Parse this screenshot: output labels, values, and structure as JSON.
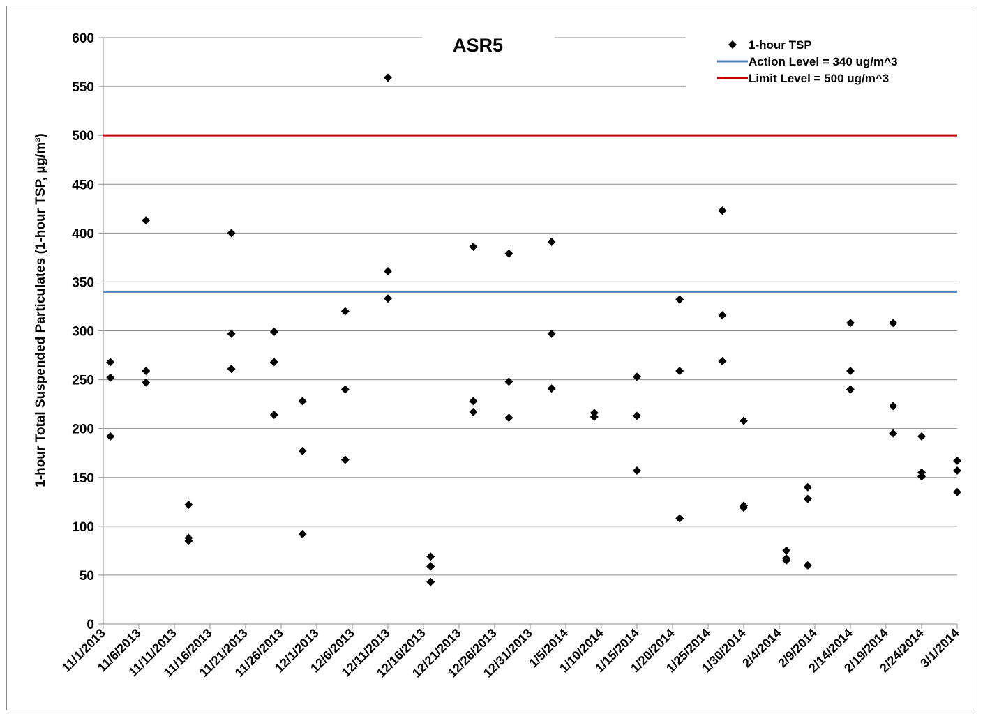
{
  "chart_data": {
    "type": "scatter",
    "title": "ASR5",
    "ylabel": "1-hour Total Suspended Particulates (1-hour TSP, µg/m³)",
    "xlabel": "",
    "ylim": [
      0,
      600
    ],
    "yticks": [
      0,
      50,
      100,
      150,
      200,
      250,
      300,
      350,
      400,
      450,
      500,
      550,
      600
    ],
    "xlim": [
      "11/1/2013",
      "3/1/2014"
    ],
    "xticks": [
      "11/1/2013",
      "11/6/2013",
      "11/11/2013",
      "11/16/2013",
      "11/21/2013",
      "11/26/2013",
      "12/1/2013",
      "12/6/2013",
      "12/11/2013",
      "12/16/2013",
      "12/21/2013",
      "12/26/2013",
      "12/31/2013",
      "1/5/2014",
      "1/10/2014",
      "1/15/2014",
      "1/20/2014",
      "1/25/2014",
      "1/30/2014",
      "2/4/2014",
      "2/9/2014",
      "2/14/2014",
      "2/19/2014",
      "2/24/2014",
      "3/1/2014"
    ],
    "grid": "horizontal",
    "legend_position": "top-right",
    "series": [
      {
        "name": "1-hour TSP",
        "kind": "scatter",
        "color": "#000000",
        "marker": "diamond",
        "points": [
          {
            "x": "11/2/2013",
            "y": 268
          },
          {
            "x": "11/2/2013",
            "y": 252
          },
          {
            "x": "11/2/2013",
            "y": 192
          },
          {
            "x": "11/7/2013",
            "y": 413
          },
          {
            "x": "11/7/2013",
            "y": 259
          },
          {
            "x": "11/7/2013",
            "y": 247
          },
          {
            "x": "11/13/2013",
            "y": 122
          },
          {
            "x": "11/13/2013",
            "y": 88
          },
          {
            "x": "11/13/2013",
            "y": 85
          },
          {
            "x": "11/19/2013",
            "y": 400
          },
          {
            "x": "11/19/2013",
            "y": 297
          },
          {
            "x": "11/19/2013",
            "y": 261
          },
          {
            "x": "11/25/2013",
            "y": 299
          },
          {
            "x": "11/25/2013",
            "y": 268
          },
          {
            "x": "11/25/2013",
            "y": 214
          },
          {
            "x": "11/29/2013",
            "y": 228
          },
          {
            "x": "11/29/2013",
            "y": 177
          },
          {
            "x": "11/29/2013",
            "y": 92
          },
          {
            "x": "12/5/2013",
            "y": 320
          },
          {
            "x": "12/5/2013",
            "y": 240
          },
          {
            "x": "12/5/2013",
            "y": 168
          },
          {
            "x": "12/11/2013",
            "y": 559
          },
          {
            "x": "12/11/2013",
            "y": 361
          },
          {
            "x": "12/11/2013",
            "y": 333
          },
          {
            "x": "12/17/2013",
            "y": 69
          },
          {
            "x": "12/17/2013",
            "y": 59
          },
          {
            "x": "12/17/2013",
            "y": 43
          },
          {
            "x": "12/23/2013",
            "y": 386
          },
          {
            "x": "12/23/2013",
            "y": 228
          },
          {
            "x": "12/23/2013",
            "y": 217
          },
          {
            "x": "12/28/2013",
            "y": 379
          },
          {
            "x": "12/28/2013",
            "y": 248
          },
          {
            "x": "12/28/2013",
            "y": 211
          },
          {
            "x": "1/3/2014",
            "y": 391
          },
          {
            "x": "1/3/2014",
            "y": 297
          },
          {
            "x": "1/3/2014",
            "y": 241
          },
          {
            "x": "1/9/2014",
            "y": 216
          },
          {
            "x": "1/9/2014",
            "y": 212
          },
          {
            "x": "1/15/2014",
            "y": 253
          },
          {
            "x": "1/15/2014",
            "y": 213
          },
          {
            "x": "1/15/2014",
            "y": 157
          },
          {
            "x": "1/21/2014",
            "y": 332
          },
          {
            "x": "1/21/2014",
            "y": 259
          },
          {
            "x": "1/21/2014",
            "y": 108
          },
          {
            "x": "1/27/2014",
            "y": 423
          },
          {
            "x": "1/27/2014",
            "y": 316
          },
          {
            "x": "1/27/2014",
            "y": 269
          },
          {
            "x": "1/30/2014",
            "y": 208
          },
          {
            "x": "1/30/2014",
            "y": 121
          },
          {
            "x": "1/30/2014",
            "y": 119
          },
          {
            "x": "2/5/2014",
            "y": 75
          },
          {
            "x": "2/5/2014",
            "y": 67
          },
          {
            "x": "2/5/2014",
            "y": 65
          },
          {
            "x": "2/8/2014",
            "y": 140
          },
          {
            "x": "2/8/2014",
            "y": 128
          },
          {
            "x": "2/8/2014",
            "y": 60
          },
          {
            "x": "2/14/2014",
            "y": 308
          },
          {
            "x": "2/14/2014",
            "y": 259
          },
          {
            "x": "2/14/2014",
            "y": 240
          },
          {
            "x": "2/20/2014",
            "y": 308
          },
          {
            "x": "2/20/2014",
            "y": 223
          },
          {
            "x": "2/20/2014",
            "y": 195
          },
          {
            "x": "2/24/2014",
            "y": 192
          },
          {
            "x": "2/24/2014",
            "y": 155
          },
          {
            "x": "2/24/2014",
            "y": 151
          },
          {
            "x": "3/1/2014",
            "y": 167
          },
          {
            "x": "3/1/2014",
            "y": 157
          },
          {
            "x": "3/1/2014",
            "y": 135
          }
        ]
      },
      {
        "name": "Action Level = 340 ug/m^3",
        "kind": "hline",
        "color": "#4f81bd",
        "y": 340
      },
      {
        "name": "Limit Level = 500 ug/m^3",
        "kind": "hline",
        "color": "#c00000",
        "y": 500
      }
    ]
  }
}
